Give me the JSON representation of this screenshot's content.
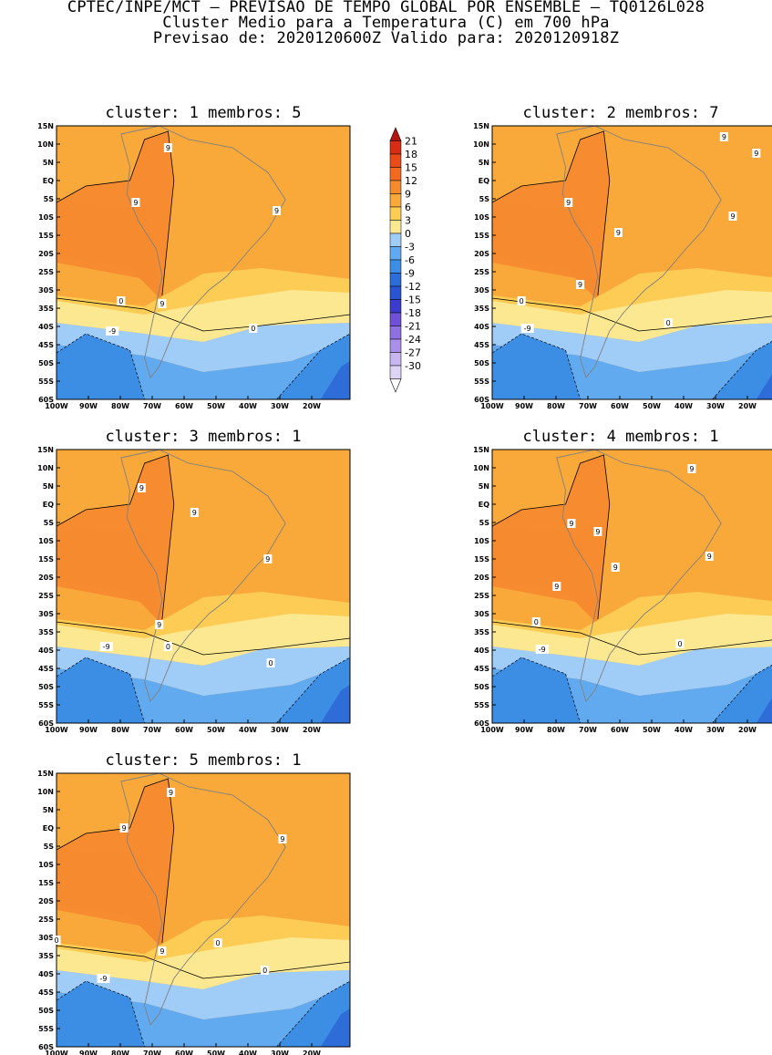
{
  "header": {
    "line1": "CPTEC/INPE/MCT – PREVISAO DE TEMPO GLOBAL POR ENSEMBLE – TQ0126L028",
    "line2": "Cluster Medio para a Temperatura (C) em 700 hPa",
    "line3": "Previsao de: 2020120600Z    Valido para: 2020120918Z"
  },
  "colors": {
    "levels": [
      "#ffffff",
      "#ddd3f5",
      "#c7b6f0",
      "#a890e8",
      "#8f70e0",
      "#6f50d6",
      "#3c3ccc",
      "#2a55d0",
      "#2e6cd8",
      "#3c8ee5",
      "#62aaf0",
      "#a0cdf7",
      "#fce890",
      "#fccc55",
      "#f9a93a",
      "#f68a2e",
      "#f26a22",
      "#e84a1a",
      "#d92c15",
      "#b31610"
    ],
    "grid": "#808080"
  },
  "colorbar": {
    "labels": [
      "21",
      "18",
      "15",
      "12",
      "9",
      "6",
      "3",
      "0",
      "-3",
      "-6",
      "-9",
      "-12",
      "-15",
      "-18",
      "-21",
      "-24",
      "-27",
      "-30"
    ]
  },
  "axes": {
    "lat_labels": [
      "15N",
      "10N",
      "5N",
      "EQ",
      "5S",
      "10S",
      "15S",
      "20S",
      "25S",
      "30S",
      "35S",
      "40S",
      "45S",
      "50S",
      "55S",
      "60S"
    ],
    "lon_labels": [
      "100W",
      "90W",
      "80W",
      "70W",
      "60W",
      "50W",
      "40W",
      "30W",
      "20W"
    ]
  },
  "panels": [
    {
      "title": "cluster: 1   membros: 5",
      "contour_labels": [
        "9",
        "9",
        "9",
        "9",
        "0",
        "0",
        "-9"
      ]
    },
    {
      "title": "cluster: 2   membros: 7",
      "contour_labels": [
        "9",
        "9",
        "9",
        "9",
        "9",
        "9",
        "0",
        "0",
        "-9"
      ]
    },
    {
      "title": "cluster: 3   membros: 1",
      "contour_labels": [
        "9",
        "9",
        "9",
        "9",
        "0",
        "0",
        "-9"
      ]
    },
    {
      "title": "cluster: 4   membros: 1",
      "contour_labels": [
        "9",
        "9",
        "9",
        "9",
        "9",
        "9",
        "0",
        "0",
        "-9"
      ]
    },
    {
      "title": "cluster: 5   membros: 1",
      "contour_labels": [
        "9",
        "9",
        "9",
        "9",
        "0",
        "0",
        "0",
        "-9"
      ]
    }
  ]
}
